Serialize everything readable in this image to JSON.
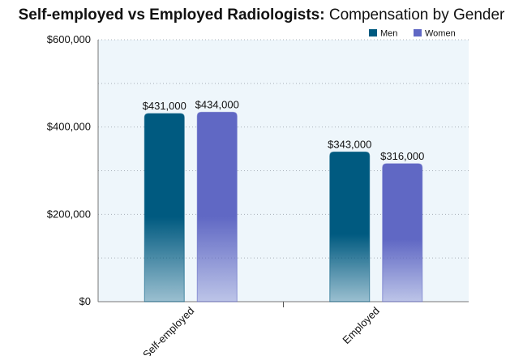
{
  "title": {
    "bold": "Self-employed vs Employed Radiologists:",
    "rest": " Compensation by Gender"
  },
  "chart_data": {
    "type": "bar",
    "categories": [
      "Self-employed",
      "Employed"
    ],
    "series": [
      {
        "name": "Men",
        "values": [
          431000,
          343000
        ],
        "color": "#005a80",
        "labels": [
          "$431,000",
          "$343,000"
        ]
      },
      {
        "name": "Women",
        "values": [
          434000,
          316000
        ],
        "color": "#6068c4",
        "labels": [
          "$434,000",
          "$316,000"
        ]
      }
    ],
    "ylim": [
      0,
      600000
    ],
    "yticks": [
      0,
      200000,
      400000,
      600000
    ],
    "ytick_labels": [
      "$0",
      "$200,000",
      "$400,000",
      "$600,000"
    ],
    "minor_gridlines": [
      100000,
      300000,
      500000
    ],
    "grid": true,
    "legend_position": "top-right",
    "background_color": "#eef6fb"
  }
}
